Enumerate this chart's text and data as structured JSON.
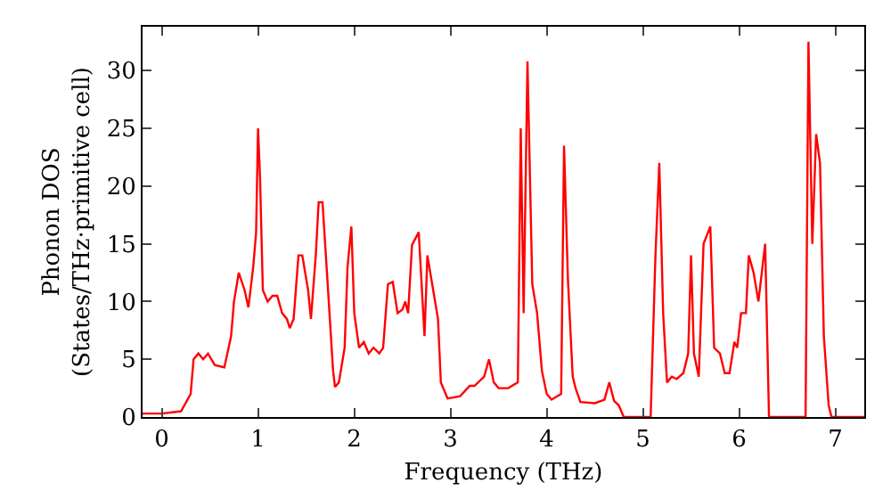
{
  "chart_data": {
    "type": "line",
    "xlabel": "Frequency (THz)",
    "ylabel": "Phonon DOS\n(States/THz·primitive cell)",
    "xlim": [
      -0.2,
      7.3
    ],
    "ylim": [
      0,
      33.8
    ],
    "xticks": [
      0,
      1,
      2,
      3,
      4,
      5,
      6,
      7
    ],
    "yticks": [
      0,
      5,
      10,
      15,
      20,
      25,
      30
    ],
    "grid": false,
    "marker": "none",
    "line_style": "solid",
    "series": [
      {
        "color": "#ff0000",
        "x": [
          -0.2,
          0,
          0.2,
          0.3,
          0.33,
          0.38,
          0.43,
          0.48,
          0.55,
          0.65,
          0.72,
          0.75,
          0.8,
          0.86,
          0.9,
          0.95,
          0.98,
          1.0,
          1.02,
          1.05,
          1.1,
          1.15,
          1.2,
          1.25,
          1.3,
          1.33,
          1.37,
          1.42,
          1.46,
          1.52,
          1.55,
          1.6,
          1.63,
          1.67,
          1.72,
          1.78,
          1.8,
          1.84,
          1.9,
          1.93,
          1.97,
          2.0,
          2.05,
          2.1,
          2.15,
          2.2,
          2.26,
          2.3,
          2.35,
          2.4,
          2.45,
          2.5,
          2.53,
          2.56,
          2.6,
          2.67,
          2.73,
          2.76,
          2.82,
          2.87,
          2.9,
          2.97,
          3.1,
          3.2,
          3.25,
          3.35,
          3.4,
          3.45,
          3.5,
          3.6,
          3.7,
          3.73,
          3.76,
          3.8,
          3.85,
          3.9,
          3.95,
          4.0,
          4.05,
          4.15,
          4.18,
          4.22,
          4.27,
          4.3,
          4.35,
          4.5,
          4.6,
          4.65,
          4.7,
          4.75,
          4.8,
          5.08,
          5.13,
          5.17,
          5.21,
          5.25,
          5.3,
          5.35,
          5.42,
          5.47,
          5.5,
          5.53,
          5.58,
          5.63,
          5.7,
          5.74,
          5.8,
          5.85,
          5.9,
          5.95,
          5.98,
          6.02,
          6.07,
          6.1,
          6.15,
          6.2,
          6.27,
          6.31,
          6.69,
          6.72,
          6.76,
          6.8,
          6.84,
          6.88,
          6.93,
          6.96,
          7.3
        ],
        "values": [
          0.3,
          0.3,
          0.5,
          2,
          5,
          5.5,
          5,
          5.5,
          4.5,
          4.3,
          7,
          10,
          12.5,
          11,
          9.5,
          13,
          16,
          25,
          21,
          11,
          10,
          10.5,
          10.5,
          9,
          8.5,
          7.7,
          8.5,
          14,
          14,
          11,
          8.5,
          14,
          18.6,
          18.6,
          12,
          4,
          2.6,
          3,
          6,
          13,
          16.5,
          9,
          6,
          6.5,
          5.5,
          6,
          5.5,
          6,
          11.5,
          11.7,
          9,
          9.3,
          10,
          9,
          14.9,
          16,
          7,
          14,
          11,
          8.5,
          3,
          1.6,
          1.8,
          2.7,
          2.7,
          3.5,
          5,
          3,
          2.5,
          2.5,
          3,
          25,
          9,
          30.8,
          11.5,
          9,
          4,
          2,
          1.5,
          2,
          23.5,
          12,
          3.5,
          2.5,
          1.3,
          1.2,
          1.5,
          3,
          1.4,
          1,
          0,
          0,
          14,
          22,
          9,
          3,
          3.5,
          3.3,
          3.8,
          5.5,
          14,
          5.5,
          3.5,
          15,
          16.5,
          6,
          5.5,
          3.8,
          3.8,
          6.5,
          6,
          9,
          9,
          14,
          12.5,
          10,
          15,
          0,
          0,
          32.5,
          15,
          24.5,
          22,
          7,
          1,
          0,
          0
        ]
      }
    ]
  }
}
